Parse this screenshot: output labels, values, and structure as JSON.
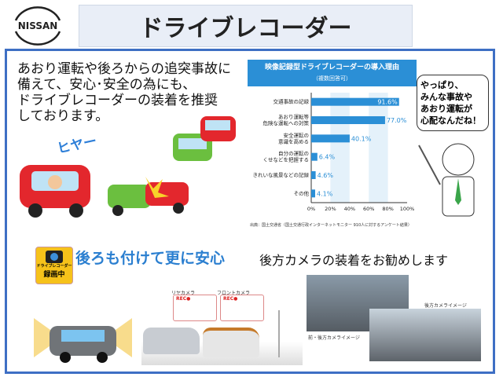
{
  "logo": {
    "text": "NISSAN"
  },
  "header": {
    "title": "ドライブレコーダー"
  },
  "intro": {
    "lines": [
      "あおり運転や後ろからの追突事故に",
      "備えて、安心･安全の為にも、",
      "ドライブレコーダーの装着を推奨",
      "しております。"
    ]
  },
  "illustration": {
    "sound_text": "ヒヤー"
  },
  "chart_data": {
    "type": "bar",
    "orientation": "horizontal",
    "title": "映像記録型ドライブレコーダーの導入理由",
    "subtitle": "（複数回答可）",
    "categories": [
      "交通事故の記録",
      "あおり運転等 危険な運転への対策",
      "安全運転の 意識を高める",
      "自分の運転の くせなどを把握する",
      "きれいな風景などの記録",
      "その他"
    ],
    "values": [
      91.6,
      77.0,
      40.1,
      6.4,
      4.6,
      4.1
    ],
    "value_labels": [
      "91.6%",
      "77.0%",
      "40.1%",
      "6.4%",
      "4.6%",
      "4.1%"
    ],
    "xticks": [
      "0%",
      "20%",
      "40%",
      "60%",
      "80%",
      "100%"
    ],
    "xlim": [
      0,
      100
    ],
    "color": "#2b8fd6",
    "source": "出典：国土交通省（国土交通行政インターネットモニター 910人に対するアンケート結果）"
  },
  "bubble": {
    "lines": [
      "やっぱり、",
      "みんな事故や",
      "あおり運転が",
      "心配なんだね！"
    ]
  },
  "sticker": {
    "line1": "ドライブレコーダー",
    "line2": "録画中"
  },
  "section2": {
    "heading": "後ろも付けて更に安心",
    "recommend": "後方カメラの装着をお勧めします"
  },
  "diagram": {
    "rear_label": "リヤカメラ",
    "front_label": "フロントカメラ",
    "rec": "REC●"
  },
  "photos": {
    "front_rear_label": "前・後方カメライメージ",
    "rear_label": "後方カメライメージ"
  }
}
